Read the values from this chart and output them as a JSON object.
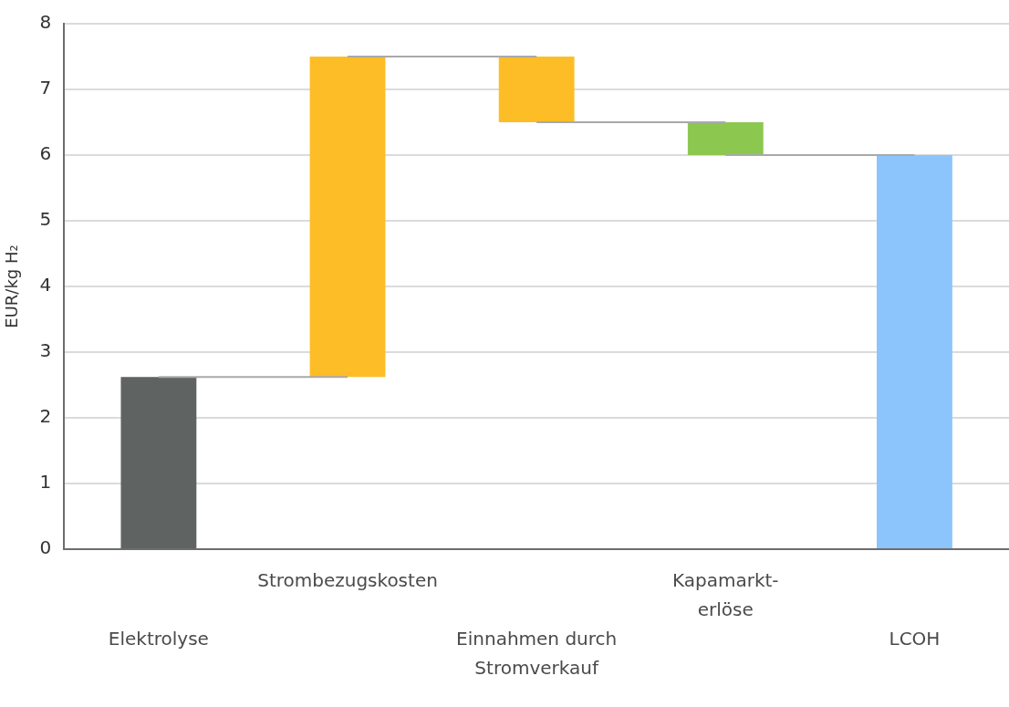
{
  "chart_data": {
    "type": "bar",
    "ylabel": "EUR/kg H₂",
    "categories": [
      "Elektrolyse",
      "Strombezugskosten",
      "Einnahmen durch Stromverkauf",
      "Kapamarkt-erlöse",
      "LCOH"
    ],
    "series": [
      {
        "base": [
          0,
          2.62,
          7.5,
          6.5,
          0
        ],
        "values": [
          2.62,
          4.88,
          -1.0,
          -0.5,
          6.0
        ],
        "colors": [
          "#5f6361",
          "#fdbd27",
          "#fdbd27",
          "#8cc850",
          "#8cc4fc"
        ]
      },
      {
        "type": "line",
        "values": [
          2.62,
          2.62,
          null,
          null,
          null
        ],
        "color": "#a8aaa9"
      },
      {
        "type": "line",
        "values": [
          null,
          7.5,
          7.5,
          null,
          null
        ],
        "color": "#a8aaa9"
      },
      {
        "type": "line",
        "values": [
          null,
          null,
          6.5,
          6.5,
          null
        ],
        "color": "#a8aaa9"
      },
      {
        "type": "line",
        "values": [
          null,
          null,
          null,
          6.0,
          6.0
        ],
        "color": "#a8aaa9"
      }
    ],
    "marker": "none",
    "ylim": [
      0,
      8
    ],
    "yticks": [
      0,
      1,
      2,
      3,
      4,
      5,
      6,
      7,
      8
    ],
    "grid": "y",
    "legend": false
  }
}
